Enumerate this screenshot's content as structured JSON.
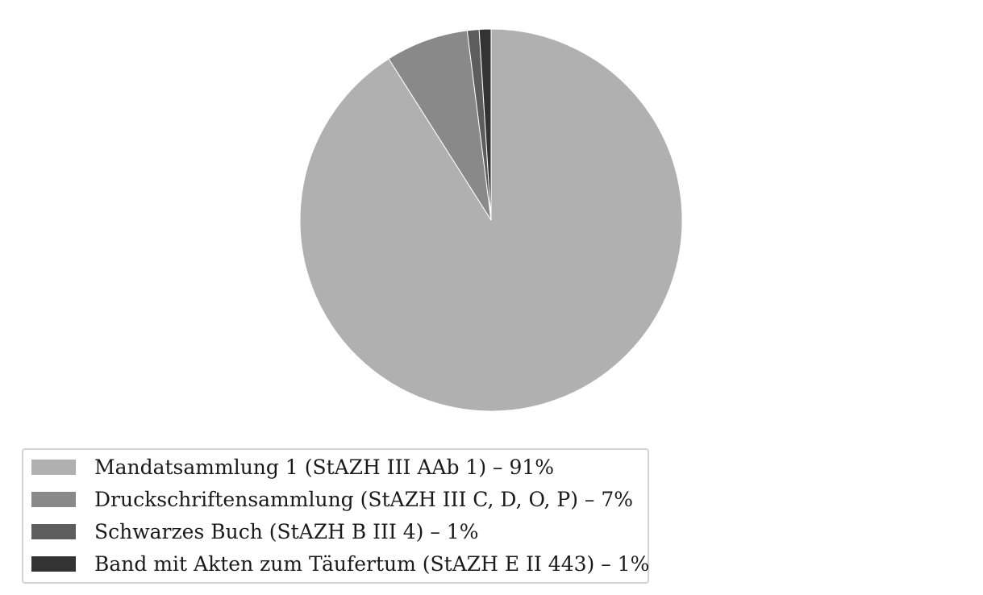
{
  "chart_data": {
    "type": "pie",
    "title": "",
    "start_angle_deg": 90,
    "direction": "clockwise",
    "legend_position": "bottom-left",
    "slices": [
      {
        "label": "Mandatsammlung 1 (StAZH III AAb 1) – 91%",
        "value": 91,
        "color": "#b0b0b0"
      },
      {
        "label": "Druckschriftensammlung (StAZH III C, D, O, P) – 7%",
        "value": 7,
        "color": "#898989"
      },
      {
        "label": "Schwarzes Buch (StAZH B III 4) – 1%",
        "value": 1,
        "color": "#5d5d5d"
      },
      {
        "label": "Band mit Akten zum Täufertum (StAZH E II 443) – 1%",
        "value": 1,
        "color": "#333333"
      }
    ]
  }
}
